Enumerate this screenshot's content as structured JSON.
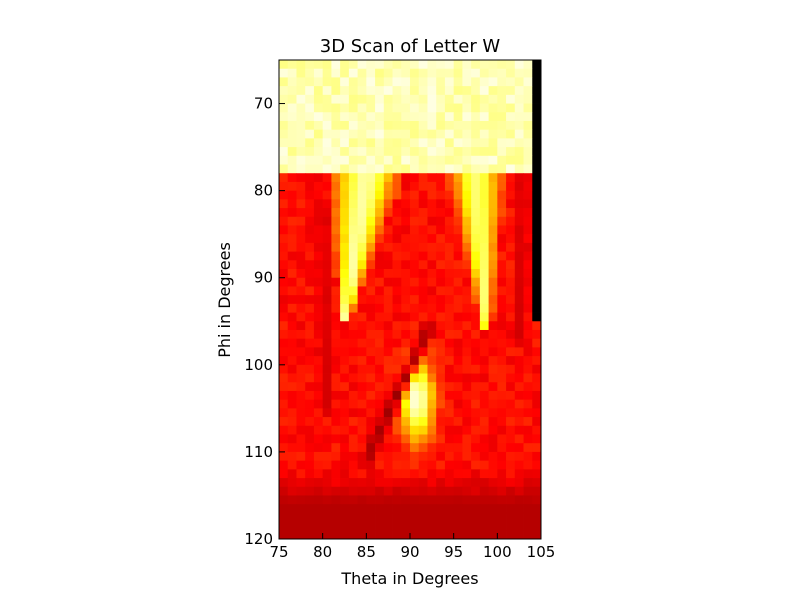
{
  "chart_data": {
    "type": "heatmap",
    "title": "3D Scan of Letter W",
    "xlabel": "Theta in Degrees",
    "ylabel": "Phi in Degrees",
    "xlim": [
      75,
      105
    ],
    "ylim": [
      120,
      65
    ],
    "x_ticks": [
      75,
      80,
      85,
      90,
      95,
      100,
      105
    ],
    "x_tick_labels": [
      "75",
      "80",
      "85",
      "90",
      "95",
      "100",
      "105"
    ],
    "y_ticks": [
      70,
      80,
      90,
      100,
      110,
      120
    ],
    "y_tick_labels": [
      "70",
      "80",
      "90",
      "100",
      "110",
      "120"
    ],
    "colormap": "hot",
    "colorbar": false,
    "grid": false,
    "grid_resolution_deg": 1,
    "background_region": {
      "phi_min": 65,
      "phi_max": 78,
      "level": 0.92,
      "description": "pale yellow background above the letter"
    },
    "letter_region_level": 0.38,
    "bottom_band": {
      "phi_min": 112,
      "phi_max": 120,
      "level": 0.26
    },
    "yellow_v_grooves": [
      {
        "phi_top": 78,
        "phi_bottom": 95,
        "theta_top": 85,
        "theta_bottom": 82.5,
        "half_width_top": 2.8,
        "half_width_bottom": 0.4,
        "peak_level": 0.9
      },
      {
        "phi_top": 78,
        "phi_bottom": 96,
        "theta_top": 97.5,
        "theta_bottom": 98.8,
        "half_width_top": 2.2,
        "half_width_bottom": 0.4,
        "peak_level": 0.85
      }
    ],
    "hot_spot": {
      "theta": 90.8,
      "phi": 104,
      "sigma_theta": 1.3,
      "sigma_phi": 3.2,
      "peak_level": 0.97
    },
    "dark_streaks": [
      {
        "from": [
          92,
          96
        ],
        "to": [
          85,
          111
        ],
        "level": 0.22
      },
      {
        "from": [
          80,
          82
        ],
        "to": [
          80.5,
          105
        ],
        "level": 0.3
      },
      {
        "from": [
          103,
          78
        ],
        "to": [
          102.5,
          97
        ],
        "level": 0.3
      }
    ],
    "black_strip": {
      "theta_min": 104,
      "theta_max": 105,
      "phi_min": 65,
      "phi_max": 95,
      "level": 0.0
    }
  }
}
